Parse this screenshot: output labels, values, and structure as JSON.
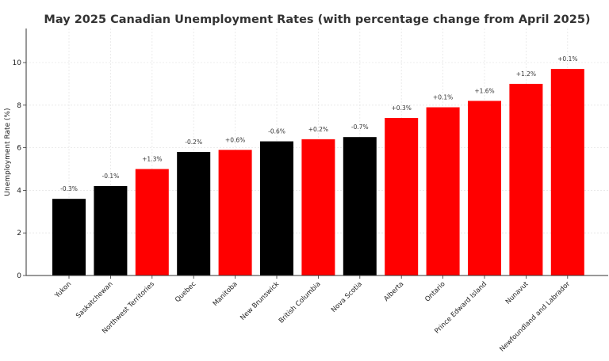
{
  "chart_data": {
    "type": "bar",
    "title": "May 2025 Canadian Unemployment Rates (with percentage change from April 2025)",
    "xlabel": "",
    "ylabel": "Unemployment Rate (%)",
    "ylim": [
      0,
      11.6
    ],
    "yticks": [
      0,
      2,
      4,
      6,
      8,
      10
    ],
    "grid": true,
    "categories": [
      "Yukon",
      "Saskatchewan",
      "Northwest Territories",
      "Quebec",
      "Manitoba",
      "New Brunswick",
      "British Columbia",
      "Nova Scotia",
      "Alberta",
      "Ontario",
      "Prince Edward Island",
      "Nunavut",
      "Newfoundland and Labrador"
    ],
    "values": [
      3.6,
      4.2,
      5.0,
      5.8,
      5.9,
      6.3,
      6.4,
      6.5,
      7.4,
      7.9,
      8.2,
      9.0,
      9.7
    ],
    "change_labels": [
      "-0.3%",
      "-0.1%",
      "+1.3%",
      "-0.2%",
      "+0.6%",
      "-0.6%",
      "+0.2%",
      "-0.7%",
      "+0.3%",
      "+0.1%",
      "+1.6%",
      "+1.2%",
      "+0.1%"
    ],
    "bar_colors": [
      "#000000",
      "#000000",
      "#ff0000",
      "#000000",
      "#ff0000",
      "#000000",
      "#ff0000",
      "#000000",
      "#ff0000",
      "#ff0000",
      "#ff0000",
      "#ff0000",
      "#ff0000"
    ]
  }
}
